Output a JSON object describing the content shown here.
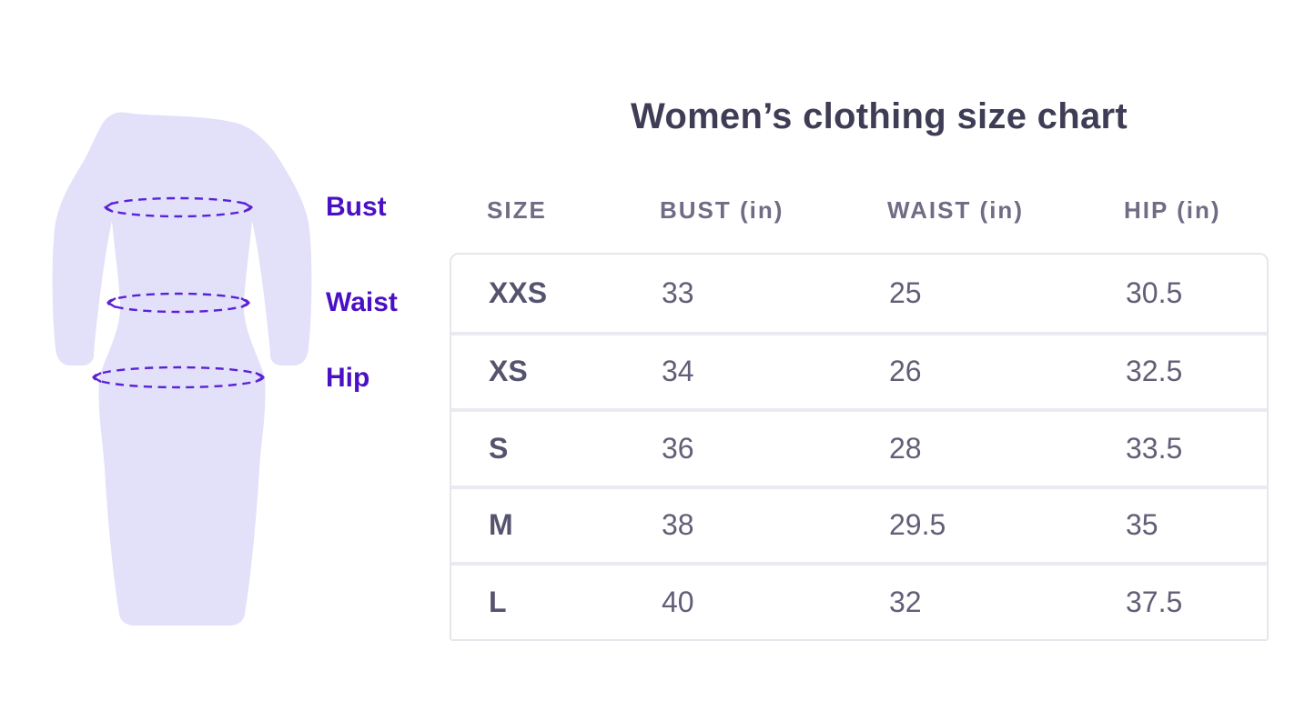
{
  "title": "Women’s clothing size chart",
  "figure": {
    "illustration": "dress-with-measurement-lines",
    "labels": [
      "Bust",
      "Waist",
      "Hip"
    ]
  },
  "chart_data": {
    "type": "table",
    "title": "Women’s clothing size chart",
    "columns": [
      "SIZE",
      "BUST (in)",
      "WAIST (in)",
      "HIP (in)"
    ],
    "rows": [
      [
        "XXS",
        "33",
        "25",
        "30.5"
      ],
      [
        "XS",
        "34",
        "26",
        "32.5"
      ],
      [
        "S",
        "36",
        "28",
        "33.5"
      ],
      [
        "M",
        "38",
        "29.5",
        "35"
      ],
      [
        "L",
        "40",
        "32",
        "37.5"
      ]
    ]
  },
  "colors": {
    "accent_purple": "#4a10c4",
    "measure_line_purple": "#5b21d6",
    "dress_fill_lavender": "#e3e0f9",
    "title_navy": "#3f3d56",
    "header_gray_purple": "#6e6d85",
    "cell_gray_purple": "#615f77",
    "table_border_gray": "#e7e6ed"
  }
}
